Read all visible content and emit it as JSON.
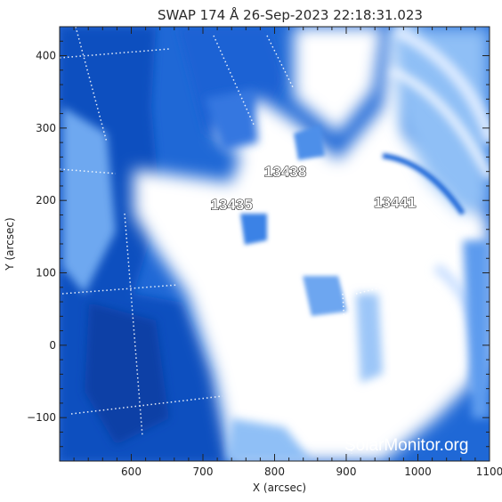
{
  "title": "SWAP 174 Å 26-Sep-2023 22:18:31.023",
  "x_axis": {
    "label": "X (arcsec)",
    "range": [
      500,
      1100
    ],
    "ticks": [
      "600",
      "700",
      "800",
      "900",
      "1000",
      "1100"
    ],
    "tick_values": [
      600,
      700,
      800,
      900,
      1000,
      1100
    ]
  },
  "y_axis": {
    "label": "Y (arcsec)",
    "range": [
      -160,
      440
    ],
    "ticks": [
      "400",
      "300",
      "200",
      "100",
      "0",
      "−100"
    ],
    "tick_values": [
      400,
      300,
      200,
      100,
      0,
      -100
    ]
  },
  "regions": [
    {
      "label": "13438",
      "x": 815,
      "y": 240
    },
    {
      "label": "13435",
      "x": 740,
      "y": 195
    },
    {
      "label": "13441",
      "x": 968,
      "y": 198
    }
  ],
  "watermark": "SolarMonitor.org",
  "colors": {
    "deep_blue": "#0a4fc4",
    "mid_blue": "#3f86ea",
    "light_blue": "#a9cdf8",
    "saturated": "#ffffff"
  }
}
